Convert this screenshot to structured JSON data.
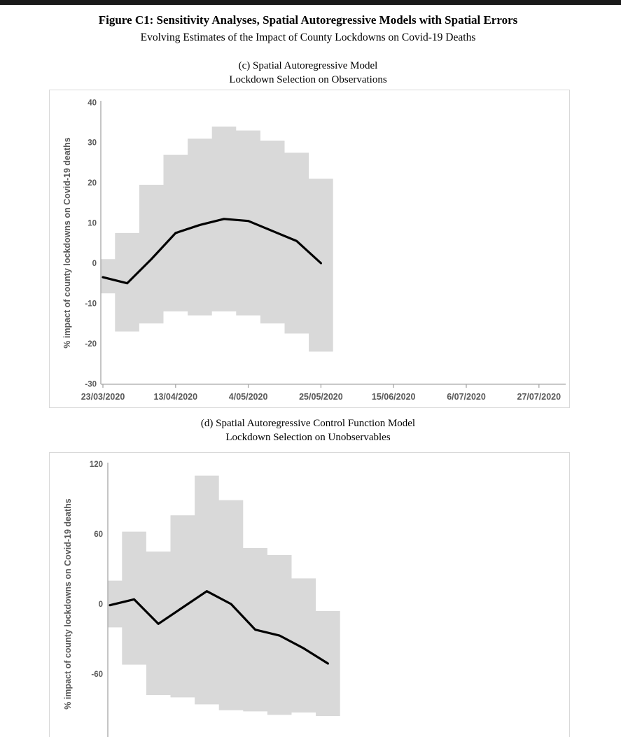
{
  "page": {
    "title": "Figure C1: Sensitivity Analyses, Spatial Autoregressive Models with Spatial Errors",
    "subtitle": "Evolving Estimates of the Impact of County Lockdowns on Covid-19 Deaths"
  },
  "panels": [
    {
      "title_line1": "(c) Spatial Autoregressive Model",
      "title_line2": "Lockdown Selection on Observations"
    },
    {
      "title_line1": "(d) Spatial Autoregressive Control Function Model",
      "title_line2": "Lockdown Selection on Unobservables"
    }
  ],
  "colors": {
    "band": "#d9d9d9",
    "line": "#000000",
    "axis": "#a6a6a6",
    "tick_label": "#595959",
    "axis_title": "#595959",
    "chart_border": "#d9d9d9",
    "top_bar": "#1a1a1a"
  },
  "chart_data": [
    {
      "type": "line",
      "title": "(c) Spatial Autoregressive Model - Lockdown Selection on Observations",
      "xlabel": "",
      "ylabel": "% impact of county lockdowns on Covid-19 deaths",
      "x": [
        "23/03/2020",
        "30/03/2020",
        "06/04/2020",
        "13/04/2020",
        "20/04/2020",
        "27/04/2020",
        "04/05/2020",
        "11/05/2020",
        "18/05/2020",
        "25/05/2020"
      ],
      "series": [
        {
          "name": "estimate",
          "values": [
            -3.5,
            -5,
            1,
            7.5,
            9.5,
            11,
            10.5,
            8,
            5.5,
            0
          ]
        },
        {
          "name": "ci_upper",
          "values": [
            1,
            7.5,
            19.5,
            27,
            31,
            34,
            33,
            30.5,
            27.5,
            21
          ]
        },
        {
          "name": "ci_lower",
          "values": [
            -7.5,
            -17,
            -15,
            -12,
            -13,
            -12,
            -13,
            -15,
            -17.5,
            -22
          ]
        }
      ],
      "band_style": "stepped-weekly-columns",
      "x_tick_labels": [
        "23/03/2020",
        "13/04/2020",
        "4/05/2020",
        "25/05/2020",
        "15/06/2020",
        "6/07/2020",
        "27/07/2020"
      ],
      "x_tick_interval_weeks": 3,
      "yticks": [
        40,
        30,
        20,
        10,
        0,
        -10,
        -20,
        -30
      ],
      "ylim": [
        -30,
        40
      ],
      "grid": false,
      "legend": false
    },
    {
      "type": "line",
      "title": "(d) Spatial Autoregressive Control Function Model - Lockdown Selection on Unobservables",
      "xlabel": "",
      "ylabel": "% impact of county lockdowns on Covid-19 deaths",
      "x": [
        "23/03/2020",
        "30/03/2020",
        "06/04/2020",
        "13/04/2020",
        "20/04/2020",
        "27/04/2020",
        "04/05/2020",
        "11/05/2020",
        "18/05/2020",
        "25/05/2020"
      ],
      "series": [
        {
          "name": "estimate",
          "values": [
            -1,
            4,
            -17,
            -3,
            11,
            0,
            -22,
            -27,
            -38,
            -51
          ]
        },
        {
          "name": "ci_upper",
          "values": [
            20,
            62,
            45,
            76,
            110,
            89,
            48,
            42,
            22,
            -6
          ]
        },
        {
          "name": "ci_lower",
          "values": [
            -20,
            -52,
            -78,
            -80,
            -86,
            -91,
            -92,
            -95,
            -93,
            -96
          ]
        }
      ],
      "band_style": "stepped-weekly-columns",
      "x_tick_labels": [],
      "x_tick_interval_weeks": 3,
      "yticks": [
        120,
        60,
        0,
        -60
      ],
      "ylim": [
        -115,
        120
      ],
      "grid": false,
      "legend": false,
      "note": "bottom of chart cut off at screenshot edge"
    }
  ]
}
